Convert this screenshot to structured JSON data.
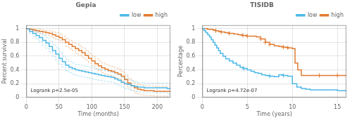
{
  "chart_data": [
    {
      "type": "step",
      "title": "Gepia",
      "xlabel": "Time (months)",
      "ylabel": "Percent survival",
      "annotation": "Logrank p=2.5e-05",
      "xlim": [
        0,
        220
      ],
      "ylim": [
        0,
        1.05
      ],
      "xticks": [
        0,
        50,
        100,
        150,
        200
      ],
      "yticks": [
        0,
        0.2,
        0.4,
        0.6,
        0.8,
        1
      ],
      "legend": "upper right",
      "grid": true,
      "series": [
        {
          "name": "low",
          "color": "#4db8e8",
          "x": [
            0,
            5,
            10,
            15,
            20,
            25,
            30,
            35,
            40,
            45,
            50,
            55,
            60,
            65,
            70,
            75,
            80,
            85,
            90,
            95,
            100,
            105,
            110,
            115,
            120,
            125,
            130,
            135,
            140,
            145,
            150,
            155,
            160,
            165,
            170,
            175,
            180,
            185,
            190,
            195,
            200,
            205,
            210,
            215,
            220
          ],
          "values": [
            1.0,
            0.96,
            0.93,
            0.9,
            0.87,
            0.83,
            0.79,
            0.74,
            0.68,
            0.63,
            0.57,
            0.52,
            0.47,
            0.44,
            0.42,
            0.4,
            0.39,
            0.38,
            0.37,
            0.36,
            0.35,
            0.34,
            0.33,
            0.32,
            0.31,
            0.3,
            0.29,
            0.27,
            0.25,
            0.22,
            0.2,
            0.19,
            0.17,
            0.16,
            0.15,
            0.15,
            0.14,
            0.14,
            0.14,
            0.14,
            0.14,
            0.14,
            0.14,
            0.13,
            0.13
          ],
          "ci_upper": [
            1.0,
            0.99,
            0.97,
            0.95,
            0.93,
            0.9,
            0.87,
            0.82,
            0.77,
            0.72,
            0.66,
            0.6,
            0.55,
            0.52,
            0.5,
            0.48,
            0.47,
            0.46,
            0.45,
            0.44,
            0.43,
            0.42,
            0.41,
            0.4,
            0.39,
            0.37,
            0.36,
            0.34,
            0.32,
            0.29,
            0.27,
            0.26,
            0.24,
            0.23,
            0.22,
            0.22,
            0.21,
            0.21,
            0.21,
            0.21,
            0.21,
            0.21,
            0.21,
            0.21,
            0.21
          ],
          "ci_lower": [
            1.0,
            0.93,
            0.89,
            0.85,
            0.81,
            0.76,
            0.71,
            0.66,
            0.59,
            0.54,
            0.48,
            0.44,
            0.39,
            0.36,
            0.34,
            0.32,
            0.31,
            0.3,
            0.29,
            0.28,
            0.27,
            0.26,
            0.25,
            0.24,
            0.23,
            0.23,
            0.22,
            0.2,
            0.18,
            0.15,
            0.13,
            0.12,
            0.1,
            0.09,
            0.08,
            0.08,
            0.07,
            0.07,
            0.07,
            0.07,
            0.07,
            0.07,
            0.07,
            0.05,
            0.05
          ]
        },
        {
          "name": "high",
          "color": "#e07b30",
          "x": [
            0,
            5,
            10,
            15,
            20,
            25,
            30,
            35,
            40,
            45,
            50,
            55,
            60,
            65,
            70,
            75,
            80,
            85,
            90,
            95,
            100,
            105,
            110,
            115,
            120,
            125,
            130,
            135,
            140,
            145,
            150,
            155,
            160,
            165,
            170,
            175,
            180,
            185,
            190,
            195,
            200,
            205,
            210,
            215,
            220
          ],
          "values": [
            1.0,
            0.99,
            0.98,
            0.97,
            0.96,
            0.95,
            0.94,
            0.93,
            0.91,
            0.89,
            0.87,
            0.84,
            0.8,
            0.77,
            0.74,
            0.71,
            0.68,
            0.65,
            0.61,
            0.57,
            0.53,
            0.49,
            0.46,
            0.43,
            0.41,
            0.39,
            0.38,
            0.36,
            0.34,
            0.31,
            0.26,
            0.21,
            0.17,
            0.14,
            0.12,
            0.11,
            0.1,
            0.1,
            0.1,
            0.09,
            0.09,
            0.09,
            0.09,
            0.09,
            0.09
          ],
          "ci_upper": [
            1.0,
            1.0,
            1.0,
            1.0,
            0.99,
            0.98,
            0.97,
            0.97,
            0.95,
            0.94,
            0.92,
            0.89,
            0.86,
            0.83,
            0.8,
            0.78,
            0.75,
            0.72,
            0.68,
            0.64,
            0.6,
            0.56,
            0.53,
            0.5,
            0.48,
            0.46,
            0.45,
            0.43,
            0.41,
            0.38,
            0.33,
            0.28,
            0.24,
            0.21,
            0.19,
            0.18,
            0.17,
            0.17,
            0.17,
            0.16,
            0.16,
            0.16,
            0.16,
            0.16,
            0.16
          ],
          "ci_lower": [
            1.0,
            0.98,
            0.96,
            0.94,
            0.93,
            0.92,
            0.91,
            0.89,
            0.87,
            0.84,
            0.82,
            0.79,
            0.74,
            0.71,
            0.68,
            0.64,
            0.61,
            0.58,
            0.54,
            0.5,
            0.46,
            0.42,
            0.39,
            0.36,
            0.34,
            0.32,
            0.31,
            0.29,
            0.27,
            0.24,
            0.19,
            0.14,
            0.1,
            0.07,
            0.05,
            0.04,
            0.03,
            0.03,
            0.03,
            0.02,
            0.02,
            0.02,
            0.02,
            0.02,
            0.02
          ]
        }
      ]
    },
    {
      "type": "step",
      "title": "TISIDB",
      "xlabel": "Time (years)",
      "ylabel": "Percentage",
      "annotation": "Logrank p=4.72e-07",
      "xlim": [
        0,
        16
      ],
      "ylim": [
        0,
        1.05
      ],
      "xticks": [
        0,
        5,
        10,
        15
      ],
      "yticks": [
        0,
        0.2,
        0.4,
        0.6,
        0.8,
        1
      ],
      "legend": "upper right",
      "grid": true,
      "series": [
        {
          "name": "low",
          "color": "#4db8e8",
          "x": [
            0,
            0.2,
            0.4,
            0.6,
            0.8,
            1.0,
            1.2,
            1.4,
            1.6,
            1.8,
            2.0,
            2.3,
            2.6,
            3.0,
            3.4,
            3.8,
            4.2,
            4.6,
            5.0,
            5.4,
            5.8,
            6.2,
            6.6,
            7.0,
            7.5,
            8.0,
            8.5,
            9.0,
            9.5,
            10.0,
            10.5,
            11.0,
            11.5,
            12.0,
            13.0,
            14.0,
            15.0,
            16.0
          ],
          "values": [
            1.0,
            0.97,
            0.94,
            0.91,
            0.88,
            0.84,
            0.8,
            0.76,
            0.72,
            0.68,
            0.64,
            0.6,
            0.56,
            0.53,
            0.5,
            0.47,
            0.44,
            0.42,
            0.4,
            0.38,
            0.36,
            0.35,
            0.33,
            0.32,
            0.31,
            0.3,
            0.33,
            0.32,
            0.31,
            0.2,
            0.15,
            0.13,
            0.12,
            0.11,
            0.11,
            0.11,
            0.1,
            0.1
          ],
          "censors_x": [
            4.6,
            7.5,
            9.0
          ],
          "censors_y": [
            0.42,
            0.31,
            0.32
          ]
        },
        {
          "name": "high",
          "color": "#e07b30",
          "x": [
            0,
            0.3,
            0.6,
            0.9,
            1.2,
            1.5,
            1.8,
            2.1,
            2.5,
            3.0,
            3.5,
            4.0,
            4.5,
            5.0,
            5.5,
            6.0,
            6.5,
            7.0,
            7.5,
            8.0,
            8.5,
            9.0,
            9.5,
            10.0,
            10.3,
            10.6,
            11.0,
            12.0,
            13.0,
            14.0,
            15.0,
            16.0
          ],
          "values": [
            1.0,
            1.0,
            0.99,
            0.99,
            0.98,
            0.97,
            0.96,
            0.95,
            0.94,
            0.93,
            0.92,
            0.91,
            0.9,
            0.89,
            0.89,
            0.88,
            0.85,
            0.8,
            0.77,
            0.75,
            0.74,
            0.73,
            0.72,
            0.71,
            0.5,
            0.4,
            0.32,
            0.32,
            0.32,
            0.32,
            0.32,
            0.32
          ],
          "censors_x": [
            1.5,
            2.1,
            3.0,
            4.5,
            5.0,
            6.5,
            7.0,
            7.5,
            9.0,
            9.5,
            13.0,
            15.0
          ],
          "censors_y": [
            0.97,
            0.95,
            0.93,
            0.9,
            0.89,
            0.85,
            0.8,
            0.77,
            0.73,
            0.72,
            0.32,
            0.32
          ]
        }
      ]
    }
  ]
}
